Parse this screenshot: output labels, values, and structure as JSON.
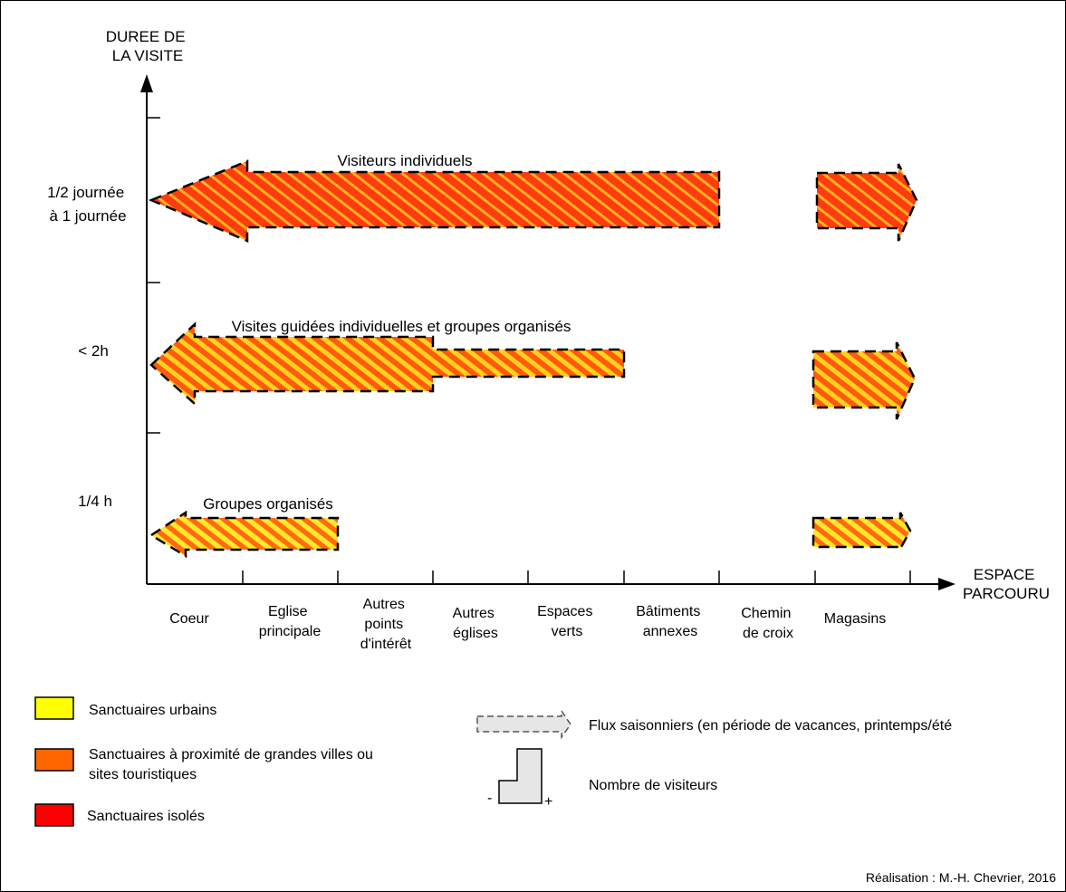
{
  "colors": {
    "yellow": "#ffff00",
    "orange": "#ff6600",
    "red": "#ff0000",
    "grey": "#e6e6e6"
  },
  "y_axis": {
    "title": [
      "DUREE DE",
      "LA VISITE"
    ]
  },
  "x_axis": {
    "title": [
      "ESPACE",
      "PARCOURU"
    ]
  },
  "y_levels": [
    {
      "lines": [
        "1/2 journée",
        "à 1 journée"
      ]
    },
    {
      "lines": [
        "< 2h"
      ]
    },
    {
      "lines": [
        "1/4 h"
      ]
    }
  ],
  "categories": [
    {
      "lines": [
        "Coeur"
      ]
    },
    {
      "lines": [
        "Eglise",
        "principale"
      ]
    },
    {
      "lines": [
        "Autres",
        "points",
        "d'intérêt"
      ]
    },
    {
      "lines": [
        "Autres",
        "églises"
      ]
    },
    {
      "lines": [
        "Espaces",
        "verts"
      ]
    },
    {
      "lines": [
        "Bâtiments",
        "annexes"
      ]
    },
    {
      "lines": [
        "Chemin",
        "de croix"
      ]
    },
    {
      "lines": [
        "Magasins"
      ]
    }
  ],
  "flows": [
    {
      "label": "Visiteurs individuels",
      "level": "1/2 journée à 1 journée",
      "main_to": "Bâtiments annexes",
      "magasins": true,
      "type": "Sanctuaires isolés",
      "intensity": "high"
    },
    {
      "label": "Visites guidées individuelles et groupes organisés",
      "level": "< 2h",
      "main_to": "Espaces verts",
      "thick_to": "Autres points d'intérêt",
      "magasins": true,
      "type": "Sanctuaires à proximité de grandes villes ou sites touristiques",
      "intensity": "medium"
    },
    {
      "label": "Groupes organisés",
      "level": "1/4 h",
      "main_to": "Autres points d'intérêt",
      "magasins": true,
      "type": "Sanctuaires à proximité de grandes villes ou sites touristiques",
      "intensity": "low"
    }
  ],
  "legend": {
    "items": [
      {
        "lines": [
          "Sanctuaires urbains"
        ],
        "color": "#ffff00"
      },
      {
        "lines": [
          "Sanctuaires à proximité de grandes villes ou",
          "sites touristiques"
        ],
        "color": "#ff6600"
      },
      {
        "lines": [
          "Sanctuaires isolés"
        ],
        "color": "#ff0000"
      }
    ],
    "seasonal": "Flux saisonniers (en période de vacances, printemps/été",
    "visitors": "Nombre de visiteurs",
    "minus": "-",
    "plus": "+"
  },
  "credit": "Réalisation : M.-H. Chevrier, 2016"
}
